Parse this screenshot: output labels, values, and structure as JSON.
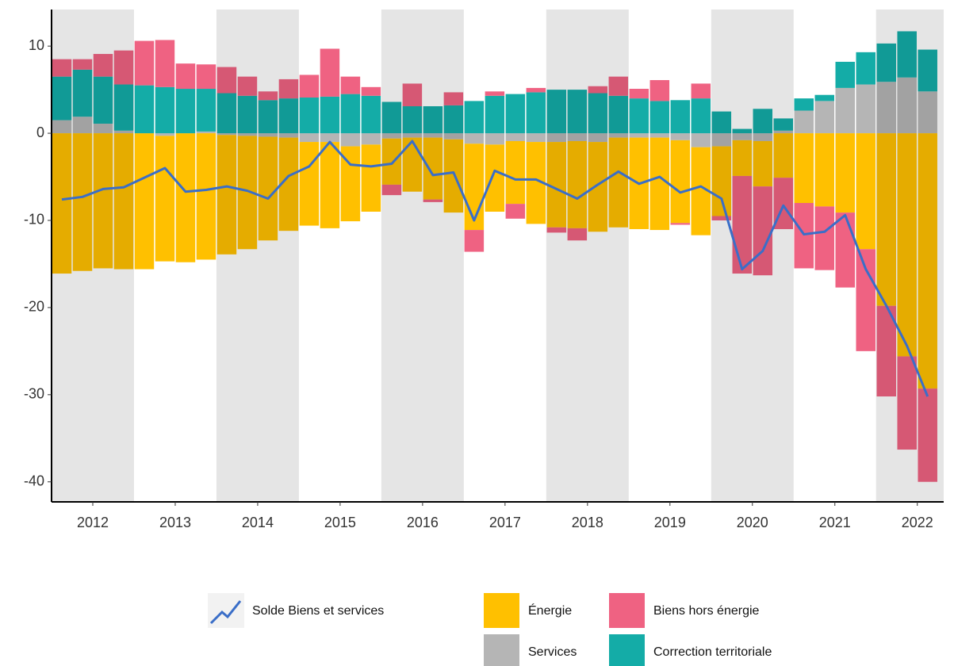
{
  "chart_data": {
    "type": "bar",
    "stacked": true,
    "x": [
      2012.125,
      2012.375,
      2012.625,
      2012.875,
      2013.125,
      2013.375,
      2013.625,
      2013.875,
      2014.125,
      2014.375,
      2014.625,
      2014.875,
      2015.125,
      2015.375,
      2015.625,
      2015.875,
      2016.125,
      2016.375,
      2016.625,
      2016.875,
      2017.125,
      2017.375,
      2017.625,
      2017.875,
      2018.125,
      2018.375,
      2018.625,
      2018.875,
      2019.125,
      2019.375,
      2019.625,
      2019.875,
      2020.125,
      2020.375,
      2020.625,
      2020.875,
      2021.125,
      2021.375,
      2021.625,
      2021.875,
      2022.125,
      2022.375,
      2022.625
    ],
    "series": [
      {
        "name": "Énergie",
        "color": "#ffc000",
        "values": [
          -16.1,
          -15.8,
          -15.5,
          -15.6,
          -15.6,
          -14.4,
          -14.8,
          -14.5,
          -13.7,
          -13.0,
          -11.9,
          -10.7,
          -9.6,
          -9.9,
          -8.6,
          -7.7,
          -5.3,
          -6.2,
          -7.1,
          -8.4,
          -9.9,
          -7.7,
          -7.2,
          -9.4,
          -9.8,
          -10.0,
          -10.3,
          -10.3,
          -10.5,
          -10.6,
          -9.5,
          -10.1,
          -8.0,
          -4.1,
          -5.2,
          -5.1,
          -8.0,
          -8.4,
          -9.1,
          -13.3,
          -19.8,
          -25.6,
          -29.3
        ]
      },
      {
        "name": "Biens hors énergie",
        "color": "#ef6282",
        "values": [
          2,
          1.2,
          2.6,
          3.9,
          5.1,
          5.4,
          2.9,
          2.8,
          3.0,
          2.2,
          1.0,
          2.2,
          2.6,
          5.5,
          2.0,
          1.0,
          -1.2,
          2.6,
          -0.3,
          1.5,
          -2.5,
          0.5,
          -1.7,
          0.5,
          -0.6,
          -1.4,
          0.8,
          2.2,
          1.1,
          2.4,
          -0.2,
          1.7,
          -0.5,
          -11.2,
          -10.2,
          -5.9,
          -7.5,
          -7.3,
          -8.6,
          -11.7,
          -10.4,
          -10.7,
          -10.7
        ]
      },
      {
        "name": "Services",
        "color": "#b5b5b5",
        "values": [
          1.5,
          1.9,
          1.1,
          0.3,
          0,
          -0.3,
          0,
          0.2,
          -0.2,
          -0.3,
          -0.4,
          -0.5,
          -1.0,
          -1.0,
          -1.5,
          -1.3,
          -0.6,
          -0.5,
          -0.5,
          -0.7,
          -1.2,
          -1.3,
          -0.9,
          -1.0,
          -1.0,
          -0.9,
          -1.0,
          -0.5,
          -0.5,
          -0.5,
          -0.8,
          -1.6,
          -1.5,
          -0.8,
          -0.9,
          0.3,
          2.6,
          3.7,
          5.2,
          5.6,
          5.9,
          6.4,
          4.8
        ]
      },
      {
        "name": "Correction territoriale",
        "color": "#14aca7",
        "values": [
          5,
          5.4,
          5.4,
          5.3,
          5.5,
          5.3,
          5.1,
          4.9,
          4.6,
          4.3,
          3.8,
          4.0,
          4.1,
          4.2,
          4.5,
          4.3,
          3.6,
          3.1,
          3.1,
          3.2,
          3.7,
          4.3,
          4.5,
          4.7,
          5.0,
          5.0,
          4.6,
          4.3,
          4.0,
          3.7,
          3.8,
          4.0,
          2.5,
          0.5,
          2.8,
          1.4,
          1.4,
          0.7,
          3.0,
          3.7,
          4.4,
          5.3,
          4.8
        ]
      }
    ],
    "line": {
      "name": "Solde Biens et services",
      "color": "#3a6ec8",
      "values": [
        -7.6,
        -7.3,
        -6.4,
        -6.2,
        -5.1,
        -4.0,
        -6.7,
        -6.5,
        -6.1,
        -6.6,
        -7.5,
        -4.9,
        -3.8,
        -1.0,
        -3.6,
        -3.8,
        -3.5,
        -0.9,
        -4.8,
        -4.5,
        -10.0,
        -4.3,
        -5.3,
        -5.3,
        -6.4,
        -7.5,
        -5.9,
        -4.4,
        -5.8,
        -5.0,
        -6.8,
        -6.1,
        -7.5,
        -15.6,
        -13.5,
        -8.3,
        -11.6,
        -11.3,
        -9.4,
        -15.6,
        -19.8,
        -24.4,
        -30.2
      ]
    },
    "xlim": [
      2012,
      2022.82
    ],
    "xticks": [
      {
        "value": 2012.5,
        "label": "2012"
      },
      {
        "value": 2013.5,
        "label": "2013"
      },
      {
        "value": 2014.5,
        "label": "2014"
      },
      {
        "value": 2015.5,
        "label": "2015"
      },
      {
        "value": 2016.5,
        "label": "2016"
      },
      {
        "value": 2017.5,
        "label": "2017"
      },
      {
        "value": 2018.5,
        "label": "2018"
      },
      {
        "value": 2019.5,
        "label": "2019"
      },
      {
        "value": 2020.5,
        "label": "2020"
      },
      {
        "value": 2021.5,
        "label": "2021"
      },
      {
        "value": 2022.5,
        "label": "2022"
      }
    ],
    "ylim": [
      -42.3,
      14.2
    ],
    "yticks": [
      -40,
      -30,
      -20,
      -10,
      0,
      10
    ],
    "legend": "bottom"
  }
}
